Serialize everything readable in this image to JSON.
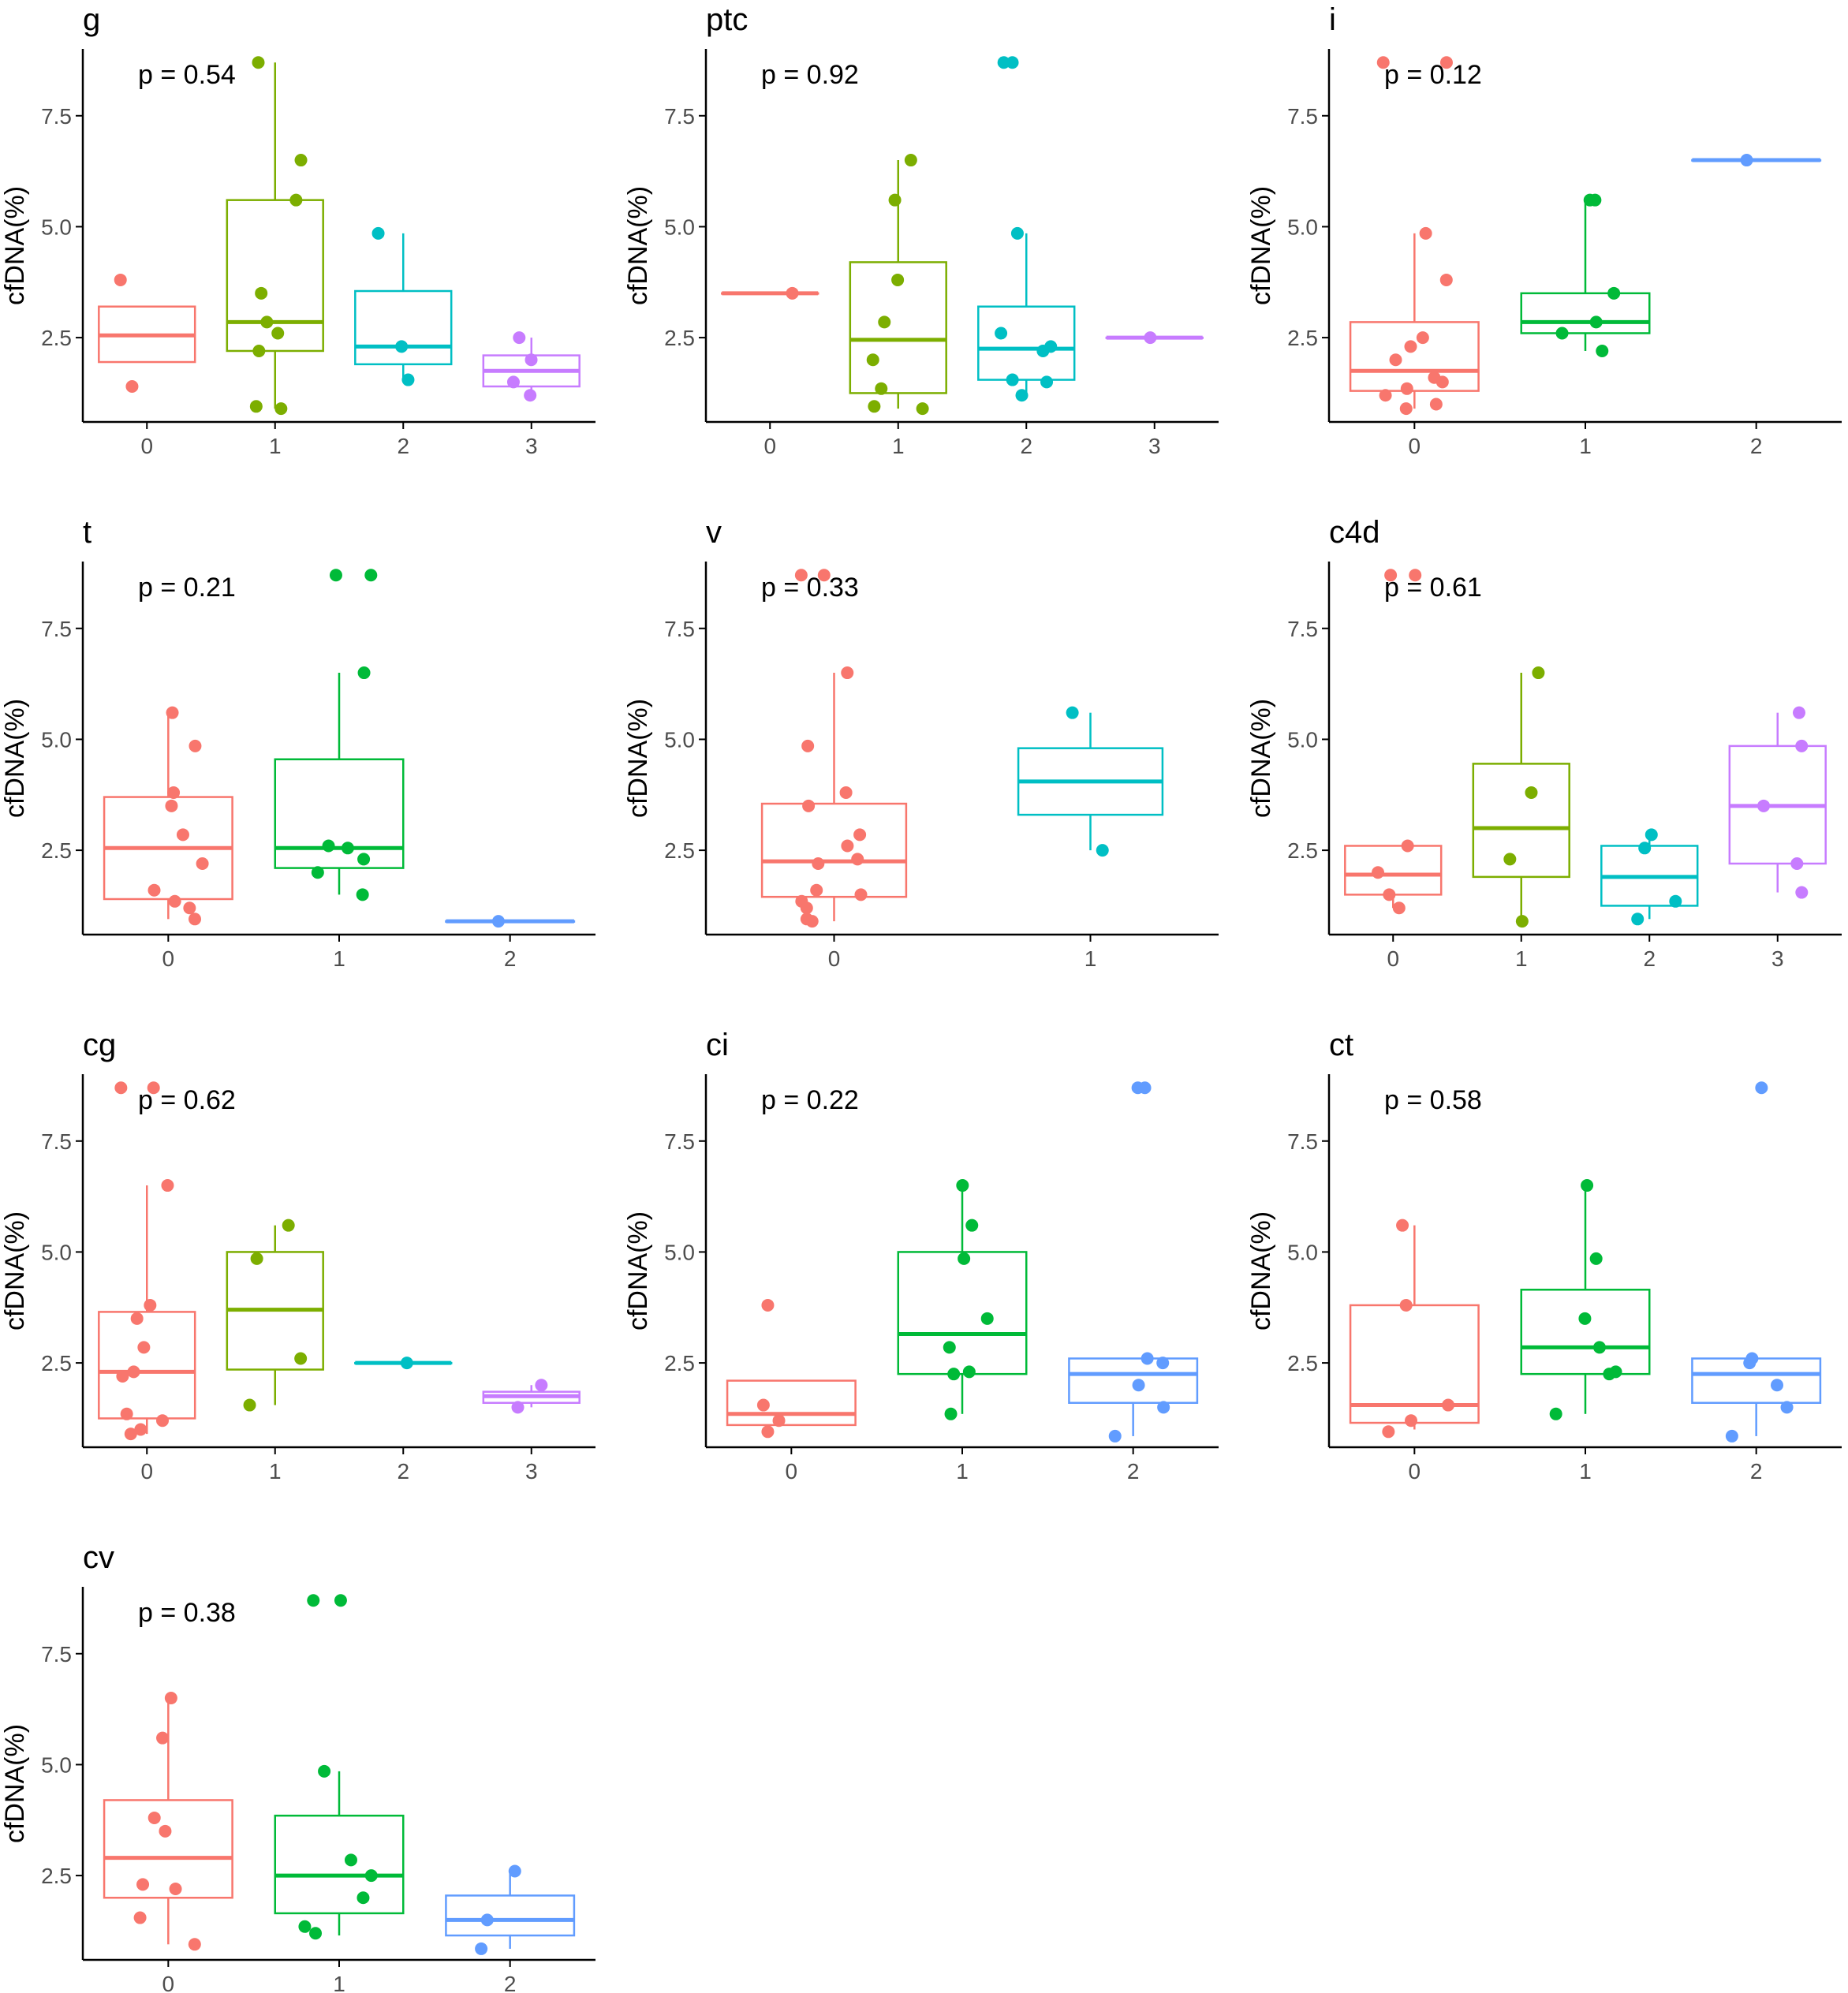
{
  "figure": {
    "ylabel": "cfDNA(%)",
    "colors": {
      "c0": "#F8766D",
      "c1_4": "#7CAE00",
      "c2_4": "#00BFC4",
      "c3_4": "#C77CFF",
      "c1_3": "#00BA38",
      "c2_3": "#619CFF",
      "c1_2": "#00BFC4",
      "axis": "#000000",
      "tick_label": "#4d4d4d"
    }
  },
  "chart_data": [
    {
      "type": "box",
      "title": "g",
      "pvalue": "p = 0.54",
      "categories": [
        "0",
        "1",
        "2",
        "3"
      ],
      "ylim": [
        0.6,
        8.9
      ],
      "yticks": [
        2.5,
        5.0,
        7.5
      ],
      "groups": [
        {
          "q1": 1.95,
          "median": 2.55,
          "q3": 3.2,
          "whisker_low": 1.95,
          "whisker_high": 3.2,
          "points": [
            3.8,
            1.4
          ]
        },
        {
          "q1": 2.2,
          "median": 2.85,
          "q3": 5.6,
          "whisker_low": 0.9,
          "whisker_high": 8.7,
          "points": [
            8.7,
            6.5,
            5.6,
            3.5,
            2.85,
            2.6,
            2.2,
            0.9,
            0.95
          ]
        },
        {
          "q1": 1.9,
          "median": 2.3,
          "q3": 3.55,
          "whisker_low": 1.55,
          "whisker_high": 4.85,
          "points": [
            4.85,
            2.3,
            1.55
          ]
        },
        {
          "q1": 1.4,
          "median": 1.75,
          "q3": 2.1,
          "whisker_low": 1.2,
          "whisker_high": 2.5,
          "points": [
            2.5,
            2.0,
            1.5,
            1.2
          ]
        }
      ]
    },
    {
      "type": "box",
      "title": "ptc",
      "pvalue": "p = 0.92",
      "categories": [
        "0",
        "1",
        "2",
        "3"
      ],
      "ylim": [
        0.6,
        8.9
      ],
      "yticks": [
        2.5,
        5.0,
        7.5
      ],
      "groups": [
        {
          "q1": 3.5,
          "median": 3.5,
          "q3": 3.5,
          "whisker_low": 3.5,
          "whisker_high": 3.5,
          "points": [
            3.5
          ]
        },
        {
          "q1": 1.25,
          "median": 2.45,
          "q3": 4.2,
          "whisker_low": 0.9,
          "whisker_high": 6.5,
          "points": [
            6.5,
            5.6,
            3.8,
            2.85,
            2.0,
            1.35,
            0.95,
            0.9
          ]
        },
        {
          "q1": 1.55,
          "median": 2.25,
          "q3": 3.2,
          "whisker_low": 1.2,
          "whisker_high": 4.85,
          "points": [
            8.7,
            8.7,
            4.85,
            2.6,
            2.3,
            2.2,
            1.55,
            1.5,
            1.2
          ]
        },
        {
          "q1": 2.5,
          "median": 2.5,
          "q3": 2.5,
          "whisker_low": 2.5,
          "whisker_high": 2.5,
          "points": [
            2.5
          ]
        }
      ]
    },
    {
      "type": "box",
      "title": "i",
      "pvalue": "p = 0.12",
      "categories": [
        "0",
        "1",
        "2"
      ],
      "ylim": [
        0.6,
        8.9
      ],
      "yticks": [
        2.5,
        5.0,
        7.5
      ],
      "groups": [
        {
          "q1": 1.3,
          "median": 1.75,
          "q3": 2.85,
          "whisker_low": 0.9,
          "whisker_high": 4.85,
          "points": [
            8.7,
            8.7,
            4.85,
            3.8,
            2.5,
            2.3,
            2.0,
            1.6,
            1.5,
            1.35,
            1.2,
            1.0,
            0.9
          ]
        },
        {
          "q1": 2.6,
          "median": 2.85,
          "q3": 3.5,
          "whisker_low": 2.2,
          "whisker_high": 5.6,
          "points": [
            5.6,
            5.6,
            3.5,
            2.85,
            2.6,
            2.2
          ]
        },
        {
          "q1": 6.5,
          "median": 6.5,
          "q3": 6.5,
          "whisker_low": 6.5,
          "whisker_high": 6.5,
          "points": [
            6.5
          ]
        }
      ]
    },
    {
      "type": "box",
      "title": "t",
      "pvalue": "p = 0.21",
      "categories": [
        "0",
        "1",
        "2"
      ],
      "ylim": [
        0.6,
        8.9
      ],
      "yticks": [
        2.5,
        5.0,
        7.5
      ],
      "groups": [
        {
          "q1": 1.4,
          "median": 2.55,
          "q3": 3.7,
          "whisker_low": 0.95,
          "whisker_high": 5.6,
          "points": [
            5.6,
            4.85,
            3.8,
            3.5,
            2.85,
            2.2,
            1.6,
            1.35,
            1.2,
            0.95
          ]
        },
        {
          "q1": 2.1,
          "median": 2.55,
          "q3": 4.55,
          "whisker_low": 1.5,
          "whisker_high": 6.5,
          "points": [
            8.7,
            8.7,
            6.5,
            2.6,
            2.55,
            2.3,
            2.0,
            1.5
          ]
        },
        {
          "q1": 0.9,
          "median": 0.9,
          "q3": 0.9,
          "whisker_low": 0.9,
          "whisker_high": 0.9,
          "points": [
            0.9
          ]
        }
      ]
    },
    {
      "type": "box",
      "title": "v",
      "pvalue": "p = 0.33",
      "categories": [
        "0",
        "1"
      ],
      "ylim": [
        0.6,
        8.9
      ],
      "yticks": [
        2.5,
        5.0,
        7.5
      ],
      "groups": [
        {
          "q1": 1.45,
          "median": 2.25,
          "q3": 3.55,
          "whisker_low": 0.9,
          "whisker_high": 6.5,
          "points": [
            8.7,
            8.7,
            6.5,
            4.85,
            3.8,
            3.5,
            2.85,
            2.6,
            2.3,
            2.2,
            1.6,
            1.5,
            1.35,
            1.2,
            0.95,
            0.9
          ]
        },
        {
          "q1": 3.3,
          "median": 4.05,
          "q3": 4.8,
          "whisker_low": 2.5,
          "whisker_high": 5.6,
          "points": [
            5.6,
            2.5
          ]
        }
      ]
    },
    {
      "type": "box",
      "title": "c4d",
      "pvalue": "p = 0.61",
      "categories": [
        "0",
        "1",
        "2",
        "3"
      ],
      "ylim": [
        0.6,
        8.9
      ],
      "yticks": [
        2.5,
        5.0,
        7.5
      ],
      "groups": [
        {
          "q1": 1.5,
          "median": 1.95,
          "q3": 2.6,
          "whisker_low": 1.2,
          "whisker_high": 2.6,
          "points": [
            8.7,
            8.7,
            2.6,
            2.0,
            1.5,
            1.2
          ]
        },
        {
          "q1": 1.9,
          "median": 3.0,
          "q3": 4.45,
          "whisker_low": 0.9,
          "whisker_high": 6.5,
          "points": [
            6.5,
            3.8,
            2.3,
            0.9
          ]
        },
        {
          "q1": 1.25,
          "median": 1.9,
          "q3": 2.6,
          "whisker_low": 0.95,
          "whisker_high": 2.85,
          "points": [
            2.85,
            2.55,
            1.35,
            0.95
          ]
        },
        {
          "q1": 2.2,
          "median": 3.5,
          "q3": 4.85,
          "whisker_low": 1.55,
          "whisker_high": 5.6,
          "points": [
            5.6,
            4.85,
            3.5,
            2.2,
            1.55
          ]
        }
      ]
    },
    {
      "type": "box",
      "title": "cg",
      "pvalue": "p = 0.62",
      "categories": [
        "0",
        "1",
        "2",
        "3"
      ],
      "ylim": [
        0.6,
        8.9
      ],
      "yticks": [
        2.5,
        5.0,
        7.5
      ],
      "groups": [
        {
          "q1": 1.25,
          "median": 2.3,
          "q3": 3.65,
          "whisker_low": 0.9,
          "whisker_high": 6.5,
          "points": [
            8.7,
            8.7,
            6.5,
            3.8,
            3.5,
            2.85,
            2.3,
            2.2,
            1.35,
            1.2,
            1.0,
            0.9
          ]
        },
        {
          "q1": 2.35,
          "median": 3.7,
          "q3": 5.0,
          "whisker_low": 1.55,
          "whisker_high": 5.6,
          "points": [
            5.6,
            4.85,
            2.6,
            1.55
          ]
        },
        {
          "q1": 2.5,
          "median": 2.5,
          "q3": 2.5,
          "whisker_low": 2.5,
          "whisker_high": 2.5,
          "points": [
            2.5
          ]
        },
        {
          "q1": 1.6,
          "median": 1.75,
          "q3": 1.85,
          "whisker_low": 1.5,
          "whisker_high": 2.0,
          "points": [
            2.0,
            1.5
          ]
        }
      ]
    },
    {
      "type": "box",
      "title": "ci",
      "pvalue": "p = 0.22",
      "categories": [
        "0",
        "1",
        "2"
      ],
      "ylim": [
        0.6,
        8.9
      ],
      "yticks": [
        2.5,
        5.0,
        7.5
      ],
      "groups": [
        {
          "q1": 1.1,
          "median": 1.35,
          "q3": 2.1,
          "whisker_low": 1.1,
          "whisker_high": 2.1,
          "points": [
            3.8,
            1.55,
            1.2,
            0.95
          ]
        },
        {
          "q1": 2.25,
          "median": 3.15,
          "q3": 5.0,
          "whisker_low": 1.35,
          "whisker_high": 6.5,
          "points": [
            6.5,
            5.6,
            4.85,
            3.5,
            2.85,
            2.3,
            2.25,
            1.35
          ]
        },
        {
          "q1": 1.6,
          "median": 2.25,
          "q3": 2.6,
          "whisker_low": 0.85,
          "whisker_high": 2.6,
          "points": [
            8.7,
            8.7,
            2.6,
            2.5,
            2.0,
            1.5,
            0.85
          ]
        }
      ]
    },
    {
      "type": "box",
      "title": "ct",
      "pvalue": "p = 0.58",
      "categories": [
        "0",
        "1",
        "2"
      ],
      "ylim": [
        0.6,
        8.9
      ],
      "yticks": [
        2.5,
        5.0,
        7.5
      ],
      "groups": [
        {
          "q1": 1.15,
          "median": 1.55,
          "q3": 3.8,
          "whisker_low": 1.0,
          "whisker_high": 5.6,
          "points": [
            5.6,
            3.8,
            1.55,
            1.2,
            0.95
          ]
        },
        {
          "q1": 2.25,
          "median": 2.85,
          "q3": 4.15,
          "whisker_low": 1.35,
          "whisker_high": 6.5,
          "points": [
            6.5,
            4.85,
            3.5,
            2.85,
            2.3,
            2.25,
            1.35
          ]
        },
        {
          "q1": 1.6,
          "median": 2.25,
          "q3": 2.6,
          "whisker_low": 0.85,
          "whisker_high": 2.6,
          "points": [
            8.7,
            2.6,
            2.5,
            2.0,
            1.5,
            0.85
          ]
        }
      ]
    },
    {
      "type": "box",
      "title": "cv",
      "pvalue": "p = 0.38",
      "categories": [
        "0",
        "1",
        "2"
      ],
      "ylim": [
        0.6,
        8.9
      ],
      "yticks": [
        2.5,
        5.0,
        7.5
      ],
      "groups": [
        {
          "q1": 2.0,
          "median": 2.9,
          "q3": 4.2,
          "whisker_low": 0.95,
          "whisker_high": 6.5,
          "points": [
            6.5,
            5.6,
            3.8,
            3.5,
            2.3,
            2.2,
            1.55,
            0.95
          ]
        },
        {
          "q1": 1.65,
          "median": 2.5,
          "q3": 3.85,
          "whisker_low": 1.15,
          "whisker_high": 4.85,
          "points": [
            8.7,
            8.7,
            4.85,
            2.85,
            2.5,
            2.0,
            1.35,
            1.2
          ]
        },
        {
          "q1": 1.15,
          "median": 1.5,
          "q3": 2.05,
          "whisker_low": 0.85,
          "whisker_high": 2.6,
          "points": [
            2.6,
            1.5,
            0.85
          ]
        }
      ]
    }
  ]
}
